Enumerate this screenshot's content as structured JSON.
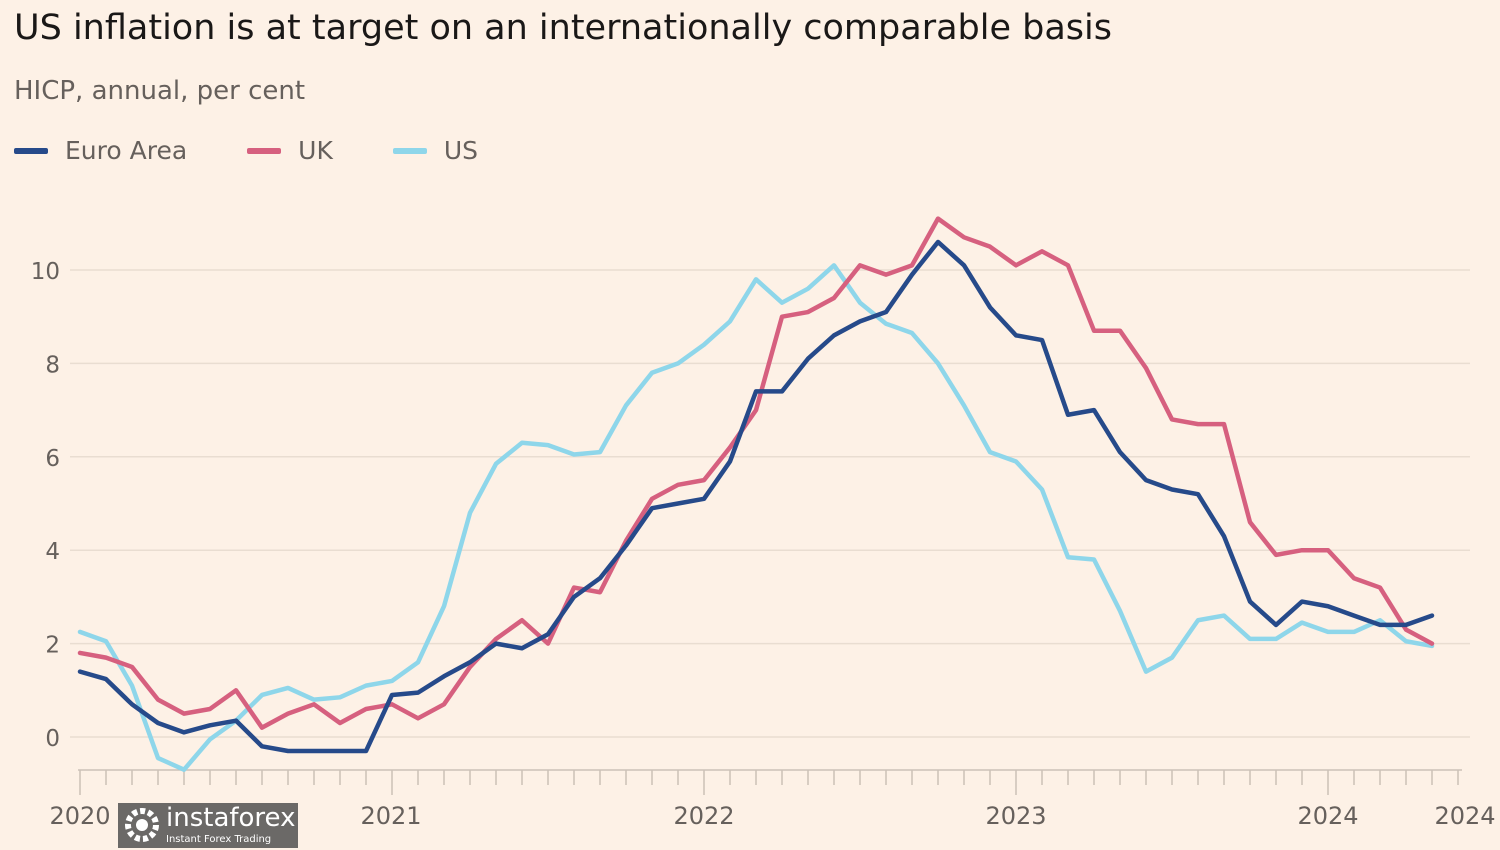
{
  "chart_data": {
    "type": "line",
    "title": "US inflation is at target on an internationally comparable basis",
    "subtitle": "HICP, annual, per cent",
    "x_start": "2020-01",
    "x_frequency": "monthly",
    "x_ticks": [
      "2020",
      "2021",
      "2022",
      "2023",
      "2024",
      "2024"
    ],
    "y_ticks": [
      0,
      2,
      4,
      6,
      8,
      10
    ],
    "ylim": [
      -0.7,
      11.5
    ],
    "grid": "horizontal",
    "legend": "top-left",
    "series": [
      {
        "name": "Euro Area",
        "color": "#264a8a",
        "values": [
          1.4,
          1.24,
          0.7,
          0.3,
          0.1,
          0.25,
          0.35,
          -0.2,
          -0.3,
          -0.3,
          -0.3,
          -0.3,
          0.9,
          0.95,
          1.3,
          1.6,
          2.0,
          1.9,
          2.2,
          3.0,
          3.4,
          4.1,
          4.9,
          5.0,
          5.1,
          5.9,
          7.4,
          7.4,
          8.1,
          8.6,
          8.9,
          9.1,
          9.9,
          10.6,
          10.1,
          9.2,
          8.6,
          8.5,
          6.9,
          7.0,
          6.1,
          5.5,
          5.3,
          5.2,
          4.3,
          2.9,
          2.4,
          2.9,
          2.8,
          2.6,
          2.4,
          2.4,
          2.6
        ]
      },
      {
        "name": "UK",
        "color": "#d6607f",
        "values": [
          1.8,
          1.7,
          1.5,
          0.8,
          0.5,
          0.6,
          1.0,
          0.2,
          0.5,
          0.7,
          0.3,
          0.6,
          0.7,
          0.4,
          0.7,
          1.5,
          2.1,
          2.5,
          2.0,
          3.2,
          3.1,
          4.2,
          5.1,
          5.4,
          5.5,
          6.2,
          7.0,
          9.0,
          9.1,
          9.4,
          10.1,
          9.9,
          10.1,
          11.1,
          10.7,
          10.5,
          10.1,
          10.4,
          10.1,
          8.7,
          8.7,
          7.9,
          6.8,
          6.7,
          6.7,
          4.6,
          3.9,
          4.0,
          4.0,
          3.4,
          3.2,
          2.3,
          2.0
        ]
      },
      {
        "name": "US",
        "color": "#8ed6ea",
        "values": [
          2.25,
          2.05,
          1.1,
          -0.45,
          -0.7,
          -0.05,
          0.35,
          0.9,
          1.05,
          0.8,
          0.85,
          1.1,
          1.2,
          1.6,
          2.8,
          4.8,
          5.85,
          6.3,
          6.25,
          6.05,
          6.1,
          7.1,
          7.8,
          8.0,
          8.4,
          8.9,
          9.8,
          9.3,
          9.6,
          10.1,
          9.3,
          8.85,
          8.65,
          8.0,
          7.1,
          6.1,
          5.9,
          5.3,
          3.85,
          3.8,
          2.7,
          1.4,
          1.7,
          2.5,
          2.6,
          2.1,
          2.1,
          2.45,
          2.25,
          2.25,
          2.5,
          2.05,
          1.95
        ]
      }
    ]
  },
  "watermark": {
    "brand": "instaforex",
    "tagline": "Instant Forex Trading"
  }
}
